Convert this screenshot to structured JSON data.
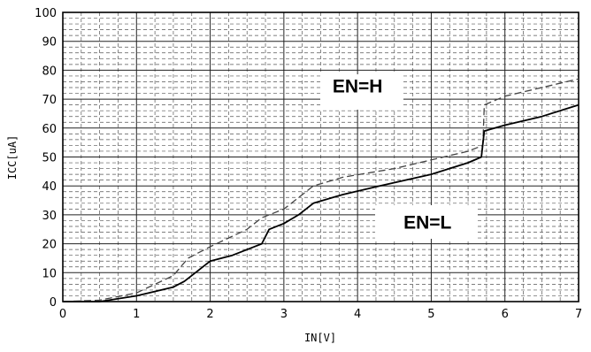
{
  "chart_data": {
    "type": "line",
    "xlabel": "IN[V]",
    "ylabel": "ICC[uA]",
    "xlim": [
      0,
      7
    ],
    "ylim": [
      0,
      100
    ],
    "x_ticks": [
      "0",
      "1",
      "2",
      "3",
      "4",
      "5",
      "6",
      "7"
    ],
    "y_ticks": [
      "0",
      "10",
      "20",
      "30",
      "40",
      "50",
      "60",
      "70",
      "80",
      "90",
      "100"
    ],
    "grid": true,
    "minor_grid": "dashed",
    "annotations": [
      "EN=H",
      "EN=L"
    ],
    "series": [
      {
        "style": "dashed",
        "color": "#444444",
        "x": [
          0,
          0.5,
          1.0,
          1.5,
          1.7,
          2.0,
          2.5,
          2.7,
          3.0,
          3.4,
          3.8,
          4.5,
          5.0,
          5.5,
          5.7,
          5.72,
          6.0,
          6.5,
          7.0
        ],
        "y": [
          0,
          0.5,
          3,
          9,
          15,
          19,
          25,
          29,
          32,
          40,
          43,
          46,
          49,
          52,
          54,
          68,
          71,
          74,
          77
        ]
      },
      {
        "style": "solid",
        "color": "#000000",
        "x": [
          0,
          0.5,
          1.0,
          1.5,
          1.65,
          1.8,
          2.0,
          2.3,
          2.6,
          2.7,
          2.8,
          3.0,
          3.2,
          3.4,
          3.8,
          4.3,
          5.0,
          5.5,
          5.68,
          5.72,
          6.0,
          6.5,
          7.0
        ],
        "y": [
          0,
          0,
          2,
          5,
          7,
          10,
          14,
          16,
          19,
          20,
          25,
          27,
          30,
          34,
          37,
          40,
          44,
          48,
          50,
          59,
          61,
          64,
          68
        ]
      }
    ]
  }
}
